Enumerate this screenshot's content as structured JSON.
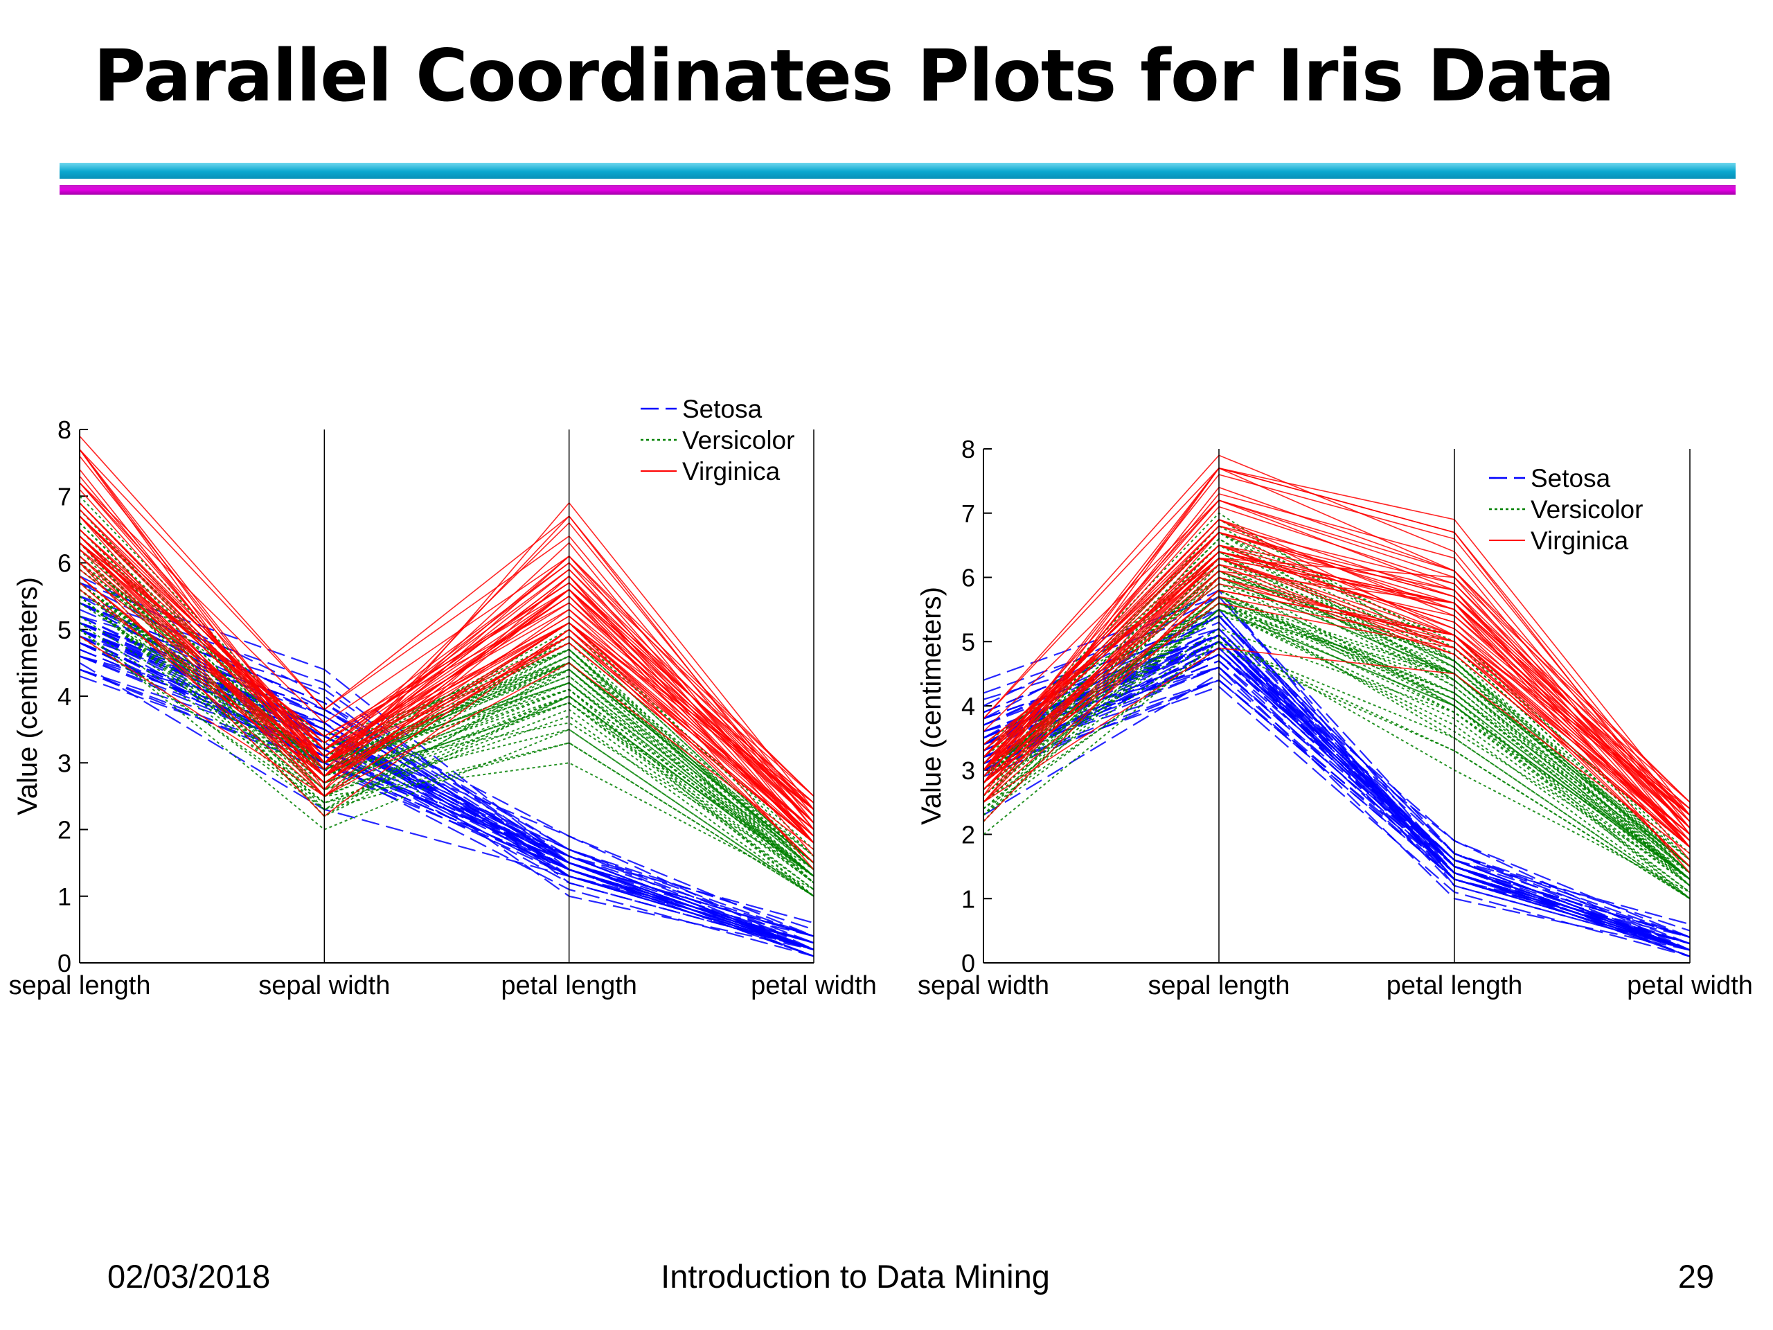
{
  "slide": {
    "title": "Parallel Coordinates Plots for Iris Data",
    "footer": {
      "date": "02/03/2018",
      "course": "Introduction to Data Mining",
      "page": "29"
    }
  },
  "colors": {
    "setosa": "#0000ff",
    "versicolor": "#008000",
    "virginica": "#ff0000",
    "accent_cyan": "#0aa7cf",
    "accent_magenta": "#e000e0"
  },
  "chart_data": [
    {
      "type": "line",
      "style": "parallel-coordinates",
      "ylabel": "Value (centimeters)",
      "ylim": [
        0,
        8
      ],
      "yticks": [
        0,
        1,
        2,
        3,
        4,
        5,
        6,
        7,
        8
      ],
      "axes": [
        "sepal length",
        "sepal width",
        "petal length",
        "petal width"
      ],
      "legend_position": "top-right",
      "series": [
        {
          "name": "Setosa",
          "line_style": "dashed",
          "color": "#0000ff",
          "profiles": [
            [
              5.1,
              3.5,
              1.4,
              0.2
            ],
            [
              4.9,
              3.0,
              1.4,
              0.2
            ],
            [
              4.7,
              3.2,
              1.3,
              0.2
            ],
            [
              4.6,
              3.1,
              1.5,
              0.2
            ],
            [
              5.0,
              3.6,
              1.4,
              0.2
            ],
            [
              5.4,
              3.9,
              1.7,
              0.4
            ],
            [
              4.6,
              3.4,
              1.4,
              0.3
            ],
            [
              5.0,
              3.4,
              1.5,
              0.2
            ],
            [
              4.4,
              2.9,
              1.4,
              0.2
            ],
            [
              4.9,
              3.1,
              1.5,
              0.1
            ],
            [
              5.4,
              3.7,
              1.5,
              0.2
            ],
            [
              4.8,
              3.4,
              1.6,
              0.2
            ],
            [
              4.8,
              3.0,
              1.4,
              0.1
            ],
            [
              4.3,
              3.0,
              1.1,
              0.1
            ],
            [
              5.8,
              4.0,
              1.2,
              0.2
            ],
            [
              5.7,
              4.4,
              1.5,
              0.4
            ],
            [
              5.4,
              3.9,
              1.3,
              0.4
            ],
            [
              5.1,
              3.5,
              1.4,
              0.3
            ],
            [
              5.7,
              3.8,
              1.7,
              0.3
            ],
            [
              5.1,
              3.8,
              1.5,
              0.3
            ],
            [
              5.4,
              3.4,
              1.7,
              0.2
            ],
            [
              5.1,
              3.7,
              1.5,
              0.4
            ],
            [
              4.6,
              3.6,
              1.0,
              0.2
            ],
            [
              5.1,
              3.3,
              1.7,
              0.5
            ],
            [
              4.8,
              3.4,
              1.9,
              0.2
            ],
            [
              5.0,
              3.0,
              1.6,
              0.2
            ],
            [
              5.0,
              3.4,
              1.6,
              0.4
            ],
            [
              5.2,
              3.5,
              1.5,
              0.2
            ],
            [
              5.2,
              3.4,
              1.4,
              0.2
            ],
            [
              4.7,
              3.2,
              1.6,
              0.2
            ],
            [
              4.8,
              3.1,
              1.6,
              0.2
            ],
            [
              5.4,
              3.4,
              1.5,
              0.4
            ],
            [
              5.2,
              4.1,
              1.5,
              0.1
            ],
            [
              5.5,
              4.2,
              1.4,
              0.2
            ],
            [
              4.9,
              3.1,
              1.5,
              0.2
            ],
            [
              5.0,
              3.2,
              1.2,
              0.2
            ],
            [
              5.5,
              3.5,
              1.3,
              0.2
            ],
            [
              4.9,
              3.6,
              1.4,
              0.1
            ],
            [
              4.4,
              3.0,
              1.3,
              0.2
            ],
            [
              5.1,
              3.4,
              1.5,
              0.2
            ],
            [
              5.0,
              3.5,
              1.3,
              0.3
            ],
            [
              4.5,
              2.3,
              1.3,
              0.3
            ],
            [
              4.4,
              3.2,
              1.3,
              0.2
            ],
            [
              5.0,
              3.5,
              1.6,
              0.6
            ],
            [
              5.1,
              3.8,
              1.9,
              0.4
            ],
            [
              4.8,
              3.0,
              1.4,
              0.3
            ],
            [
              5.1,
              3.8,
              1.6,
              0.2
            ],
            [
              4.6,
              3.2,
              1.4,
              0.2
            ],
            [
              5.3,
              3.7,
              1.5,
              0.2
            ],
            [
              5.0,
              3.3,
              1.4,
              0.2
            ]
          ]
        },
        {
          "name": "Versicolor",
          "line_style": "dotted",
          "color": "#008000",
          "profiles": [
            [
              7.0,
              3.2,
              4.7,
              1.4
            ],
            [
              6.4,
              3.2,
              4.5,
              1.5
            ],
            [
              6.9,
              3.1,
              4.9,
              1.5
            ],
            [
              5.5,
              2.3,
              4.0,
              1.3
            ],
            [
              6.5,
              2.8,
              4.6,
              1.5
            ],
            [
              5.7,
              2.8,
              4.5,
              1.3
            ],
            [
              6.3,
              3.3,
              4.7,
              1.6
            ],
            [
              4.9,
              2.4,
              3.3,
              1.0
            ],
            [
              6.6,
              2.9,
              4.6,
              1.3
            ],
            [
              5.2,
              2.7,
              3.9,
              1.4
            ],
            [
              5.0,
              2.0,
              3.5,
              1.0
            ],
            [
              5.9,
              3.0,
              4.2,
              1.5
            ],
            [
              6.0,
              2.2,
              4.0,
              1.0
            ],
            [
              6.1,
              2.9,
              4.7,
              1.4
            ],
            [
              5.6,
              2.9,
              3.6,
              1.3
            ],
            [
              6.7,
              3.1,
              4.4,
              1.4
            ],
            [
              5.6,
              3.0,
              4.5,
              1.5
            ],
            [
              5.8,
              2.7,
              4.1,
              1.0
            ],
            [
              6.2,
              2.2,
              4.5,
              1.5
            ],
            [
              5.6,
              2.5,
              3.9,
              1.1
            ],
            [
              5.9,
              3.2,
              4.8,
              1.8
            ],
            [
              6.1,
              2.8,
              4.0,
              1.3
            ],
            [
              6.3,
              2.5,
              4.9,
              1.5
            ],
            [
              6.1,
              2.8,
              4.7,
              1.2
            ],
            [
              6.4,
              2.9,
              4.3,
              1.3
            ],
            [
              6.6,
              3.0,
              4.4,
              1.4
            ],
            [
              6.8,
              2.8,
              4.8,
              1.4
            ],
            [
              6.7,
              3.0,
              5.0,
              1.7
            ],
            [
              6.0,
              2.9,
              4.5,
              1.5
            ],
            [
              5.7,
              2.6,
              3.5,
              1.0
            ],
            [
              5.5,
              2.4,
              3.8,
              1.1
            ],
            [
              5.5,
              2.4,
              3.7,
              1.0
            ],
            [
              5.8,
              2.7,
              3.9,
              1.2
            ],
            [
              6.0,
              2.7,
              5.1,
              1.6
            ],
            [
              5.4,
              3.0,
              4.5,
              1.5
            ],
            [
              6.0,
              3.4,
              4.5,
              1.6
            ],
            [
              6.7,
              3.1,
              4.7,
              1.5
            ],
            [
              6.3,
              2.3,
              4.4,
              1.3
            ],
            [
              5.6,
              3.0,
              4.1,
              1.3
            ],
            [
              5.5,
              2.5,
              4.0,
              1.3
            ],
            [
              5.5,
              2.6,
              4.4,
              1.2
            ],
            [
              6.1,
              3.0,
              4.6,
              1.4
            ],
            [
              5.8,
              2.6,
              4.0,
              1.2
            ],
            [
              5.0,
              2.3,
              3.3,
              1.0
            ],
            [
              5.6,
              2.7,
              4.2,
              1.3
            ],
            [
              5.7,
              3.0,
              4.2,
              1.2
            ],
            [
              5.7,
              2.9,
              4.2,
              1.3
            ],
            [
              6.2,
              2.9,
              4.3,
              1.3
            ],
            [
              5.1,
              2.5,
              3.0,
              1.1
            ],
            [
              5.7,
              2.8,
              4.1,
              1.3
            ]
          ]
        },
        {
          "name": "Virginica",
          "line_style": "solid",
          "color": "#ff0000",
          "profiles": [
            [
              6.3,
              3.3,
              6.0,
              2.5
            ],
            [
              5.8,
              2.7,
              5.1,
              1.9
            ],
            [
              7.1,
              3.0,
              5.9,
              2.1
            ],
            [
              6.3,
              2.9,
              5.6,
              1.8
            ],
            [
              6.5,
              3.0,
              5.8,
              2.2
            ],
            [
              7.6,
              3.0,
              6.6,
              2.1
            ],
            [
              4.9,
              2.5,
              4.5,
              1.7
            ],
            [
              7.3,
              2.9,
              6.3,
              1.8
            ],
            [
              6.7,
              2.5,
              5.8,
              1.8
            ],
            [
              7.2,
              3.6,
              6.1,
              2.5
            ],
            [
              6.5,
              3.2,
              5.1,
              2.0
            ],
            [
              6.4,
              2.7,
              5.3,
              1.9
            ],
            [
              6.8,
              3.0,
              5.5,
              2.1
            ],
            [
              5.7,
              2.5,
              5.0,
              2.0
            ],
            [
              5.8,
              2.8,
              5.1,
              2.4
            ],
            [
              6.4,
              3.2,
              5.3,
              2.3
            ],
            [
              6.5,
              3.0,
              5.5,
              1.8
            ],
            [
              7.7,
              3.8,
              6.7,
              2.2
            ],
            [
              7.7,
              2.6,
              6.9,
              2.3
            ],
            [
              6.0,
              2.2,
              5.0,
              1.5
            ],
            [
              6.9,
              3.2,
              5.7,
              2.3
            ],
            [
              5.6,
              2.8,
              4.9,
              2.0
            ],
            [
              7.7,
              2.8,
              6.7,
              2.0
            ],
            [
              6.3,
              2.7,
              4.9,
              1.8
            ],
            [
              6.7,
              3.3,
              5.7,
              2.1
            ],
            [
              7.2,
              3.2,
              6.0,
              1.8
            ],
            [
              6.2,
              2.8,
              4.8,
              1.8
            ],
            [
              6.1,
              3.0,
              4.9,
              1.8
            ],
            [
              6.4,
              2.8,
              5.6,
              2.1
            ],
            [
              7.2,
              3.0,
              5.8,
              1.6
            ],
            [
              7.4,
              2.8,
              6.1,
              1.9
            ],
            [
              7.9,
              3.8,
              6.4,
              2.0
            ],
            [
              6.4,
              2.8,
              5.6,
              2.2
            ],
            [
              6.3,
              2.8,
              5.1,
              1.5
            ],
            [
              6.1,
              2.6,
              5.6,
              1.4
            ],
            [
              7.7,
              3.0,
              6.1,
              2.3
            ],
            [
              6.3,
              3.4,
              5.6,
              2.4
            ],
            [
              6.4,
              3.1,
              5.5,
              1.8
            ],
            [
              6.0,
              3.0,
              4.8,
              1.8
            ],
            [
              6.9,
              3.1,
              5.4,
              2.1
            ],
            [
              6.7,
              3.1,
              5.6,
              2.4
            ],
            [
              6.9,
              3.1,
              5.1,
              2.3
            ],
            [
              5.8,
              2.7,
              5.1,
              1.9
            ],
            [
              6.8,
              3.2,
              5.9,
              2.3
            ],
            [
              6.7,
              3.3,
              5.7,
              2.5
            ],
            [
              6.7,
              3.0,
              5.2,
              2.3
            ],
            [
              6.3,
              2.5,
              5.0,
              1.9
            ],
            [
              6.5,
              3.0,
              5.2,
              2.0
            ],
            [
              6.2,
              3.4,
              5.4,
              2.3
            ],
            [
              5.9,
              3.0,
              5.1,
              1.8
            ]
          ]
        }
      ]
    },
    {
      "type": "line",
      "style": "parallel-coordinates",
      "ylabel": "Value (centimeters)",
      "ylim": [
        0,
        8
      ],
      "yticks": [
        0,
        1,
        2,
        3,
        4,
        5,
        6,
        7,
        8
      ],
      "axes": [
        "sepal width",
        "sepal length",
        "petal length",
        "petal width"
      ],
      "axis_source_index": [
        1,
        0,
        2,
        3
      ],
      "legend_position": "top-right",
      "series_from_chart": 0,
      "series_names": [
        "Setosa",
        "Versicolor",
        "Virginica"
      ]
    }
  ]
}
